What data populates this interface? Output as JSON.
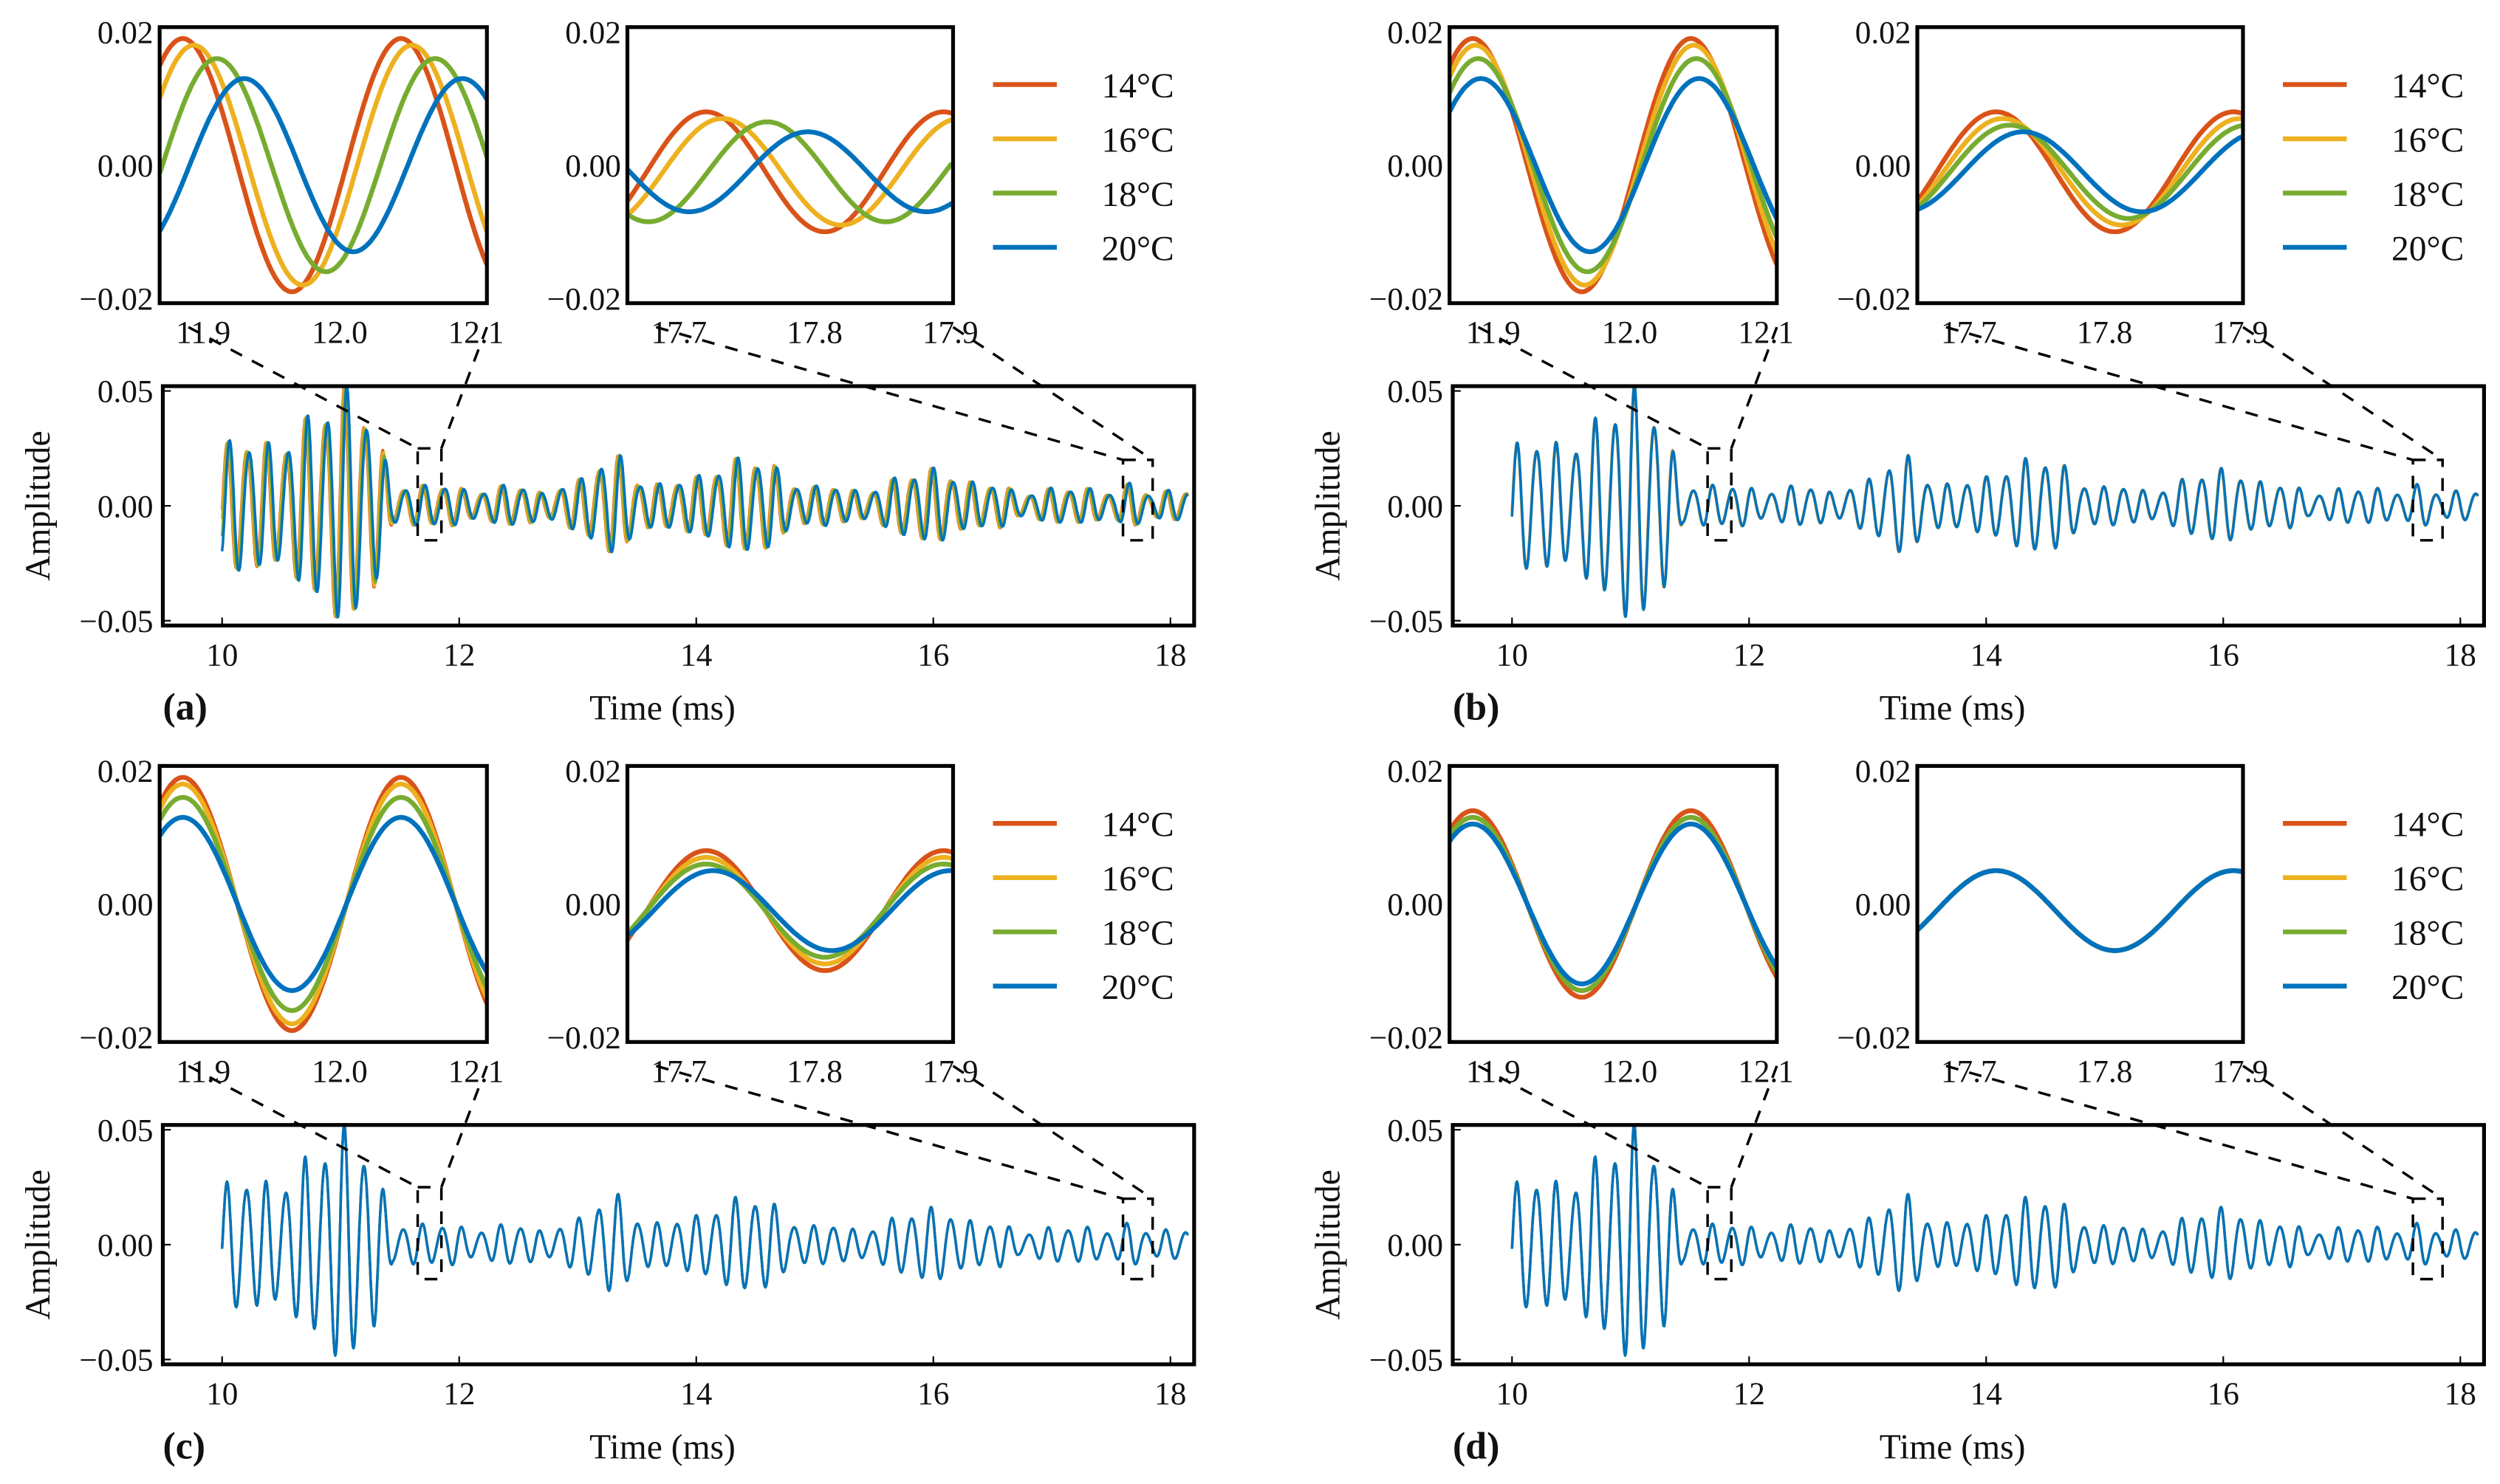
{
  "chart_data": {
    "type": "line",
    "series": [
      {
        "name": "14°C",
        "color": "#D95319"
      },
      {
        "name": "16°C",
        "color": "#EDB120"
      },
      {
        "name": "18°C",
        "color": "#77AC30"
      },
      {
        "name": "20°C",
        "color": "#0072BD"
      }
    ],
    "main_axis": {
      "xlabel": "Time (ms)",
      "ylabel": "Amplitude",
      "xlim": [
        9.5,
        18.2
      ],
      "ylim": [
        -0.05,
        0.05
      ],
      "xticks": [
        10,
        12,
        14,
        16,
        18
      ],
      "xtick_labels": [
        "10",
        "12",
        "14",
        "16",
        "18"
      ],
      "yticks": [
        -0.05,
        0,
        0.05
      ],
      "ytick_labels": [
        "−0.05",
        "0.00",
        "0.05"
      ]
    },
    "inset1_axis": {
      "xlim": [
        11.868,
        12.108
      ],
      "ylim": [
        -0.02,
        0.02
      ],
      "xticks": [
        11.9,
        12.0,
        12.1
      ],
      "xtick_labels": [
        "11.9",
        "12.0",
        "12.1"
      ],
      "yticks": [
        -0.02,
        0,
        0.02
      ],
      "ytick_labels": [
        "−0.02",
        "0.00",
        "0.02"
      ],
      "zoom_region": [
        11.65,
        11.85
      ]
    },
    "inset2_axis": {
      "xlim": [
        17.662,
        17.902
      ],
      "ylim": [
        -0.02,
        0.02
      ],
      "xticks": [
        17.7,
        17.8,
        17.9
      ],
      "xtick_labels": [
        "17.7",
        "17.8",
        "17.9"
      ],
      "yticks": [
        -0.02,
        0,
        0.02
      ],
      "ytick_labels": [
        "−0.02",
        "0.00",
        "0.02"
      ],
      "zoom_region": [
        17.6,
        17.85
      ]
    },
    "panels": [
      {
        "label": "(a)",
        "inset1_shift_ms": [
          0,
          0.008,
          0.025,
          0.045
        ],
        "inset1_amp": [
          0.019,
          0.018,
          0.016,
          0.013
        ],
        "inset2_shift_ms": [
          0,
          0.012,
          0.045,
          0.075
        ],
        "inset2_amp": [
          0.009,
          0.008,
          0.0075,
          0.006
        ]
      },
      {
        "label": "(b)",
        "inset1_shift_ms": [
          0,
          0.002,
          0.004,
          0.006
        ],
        "inset1_amp": [
          0.019,
          0.018,
          0.016,
          0.013
        ],
        "inset2_shift_ms": [
          0,
          0.005,
          0.01,
          0.02
        ],
        "inset2_amp": [
          0.009,
          0.008,
          0.007,
          0.006
        ]
      },
      {
        "label": "(c)",
        "inset1_shift_ms": [
          0,
          0,
          0,
          0
        ],
        "inset1_amp": [
          0.019,
          0.018,
          0.016,
          0.013
        ],
        "inset2_shift_ms": [
          0,
          0,
          0,
          0.005
        ],
        "inset2_amp": [
          0.009,
          0.008,
          0.007,
          0.006
        ]
      },
      {
        "label": "(d)",
        "inset1_shift_ms": [
          0,
          0,
          0,
          0
        ],
        "inset1_amp": [
          0.014,
          0.013,
          0.013,
          0.012
        ],
        "inset2_shift_ms": [
          0,
          0,
          0,
          0
        ],
        "inset2_amp": [
          0.006,
          0.006,
          0.006,
          0.006
        ]
      }
    ]
  }
}
